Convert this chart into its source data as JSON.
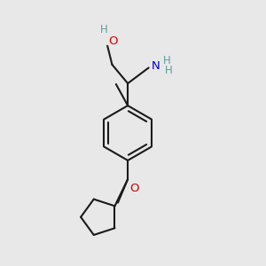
{
  "background_color": "#e8e8e8",
  "bond_color": "#1a1a1a",
  "bond_width": 1.5,
  "oh_color": "#1a1a1a",
  "o_red_color": "#cc0000",
  "nh2_color": "#0000cd",
  "h_color": "#5a9ea0",
  "fig_size": [
    3.0,
    3.0
  ],
  "dpi": 100,
  "xlim": [
    0,
    10
  ],
  "ylim": [
    0,
    10
  ]
}
